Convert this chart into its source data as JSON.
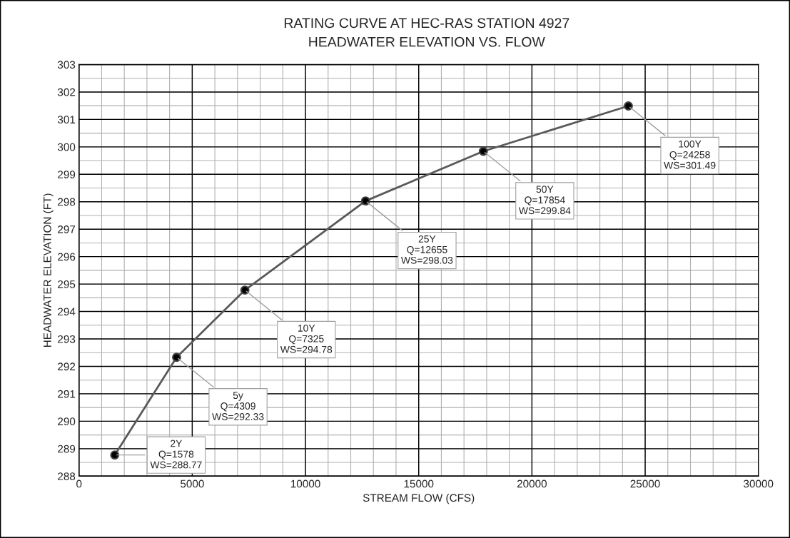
{
  "chart_data": {
    "type": "line",
    "title": "RATING CURVE AT HEC-RAS STATION 4927",
    "subtitle": "HEADWATER ELEVATION VS. FLOW",
    "xlabel": "STREAM FLOW (CFS)",
    "ylabel": "HEADWATER ELEVATION (FT)",
    "x": [
      1578,
      4309,
      7325,
      12655,
      17854,
      24258
    ],
    "series": [
      {
        "color": "#595959",
        "values": [
          288.77,
          292.33,
          294.78,
          298.03,
          299.84,
          301.49
        ]
      }
    ],
    "marker": "circle",
    "line_style": "solid",
    "grid": true,
    "legend": false,
    "xlim": [
      0,
      30000
    ],
    "xticks": [
      0,
      5000,
      10000,
      15000,
      20000,
      25000,
      30000
    ],
    "ylim": [
      288,
      303
    ],
    "yticks": [
      288,
      289,
      290,
      291,
      292,
      293,
      294,
      295,
      296,
      297,
      298,
      299,
      300,
      301,
      302,
      303
    ],
    "annotations": [
      {
        "text": "2Y\nQ=1578\nWS=288.77",
        "x": 1578,
        "y": 288.77
      },
      {
        "text": "5y\nQ=4309\nWS=292.33",
        "x": 4309,
        "y": 292.33
      },
      {
        "text": "10Y\nQ=7325\nWS=294.78",
        "x": 7325,
        "y": 294.78
      },
      {
        "text": "25Y\nQ=12655\nWS=298.03",
        "x": 12655,
        "y": 298.03
      },
      {
        "text": "50Y\nQ=17854\nWS=299.84",
        "x": 17854,
        "y": 299.84
      },
      {
        "text": "100Y\nQ=24258\nWS=301.49",
        "x": 24258,
        "y": 301.49
      }
    ]
  }
}
